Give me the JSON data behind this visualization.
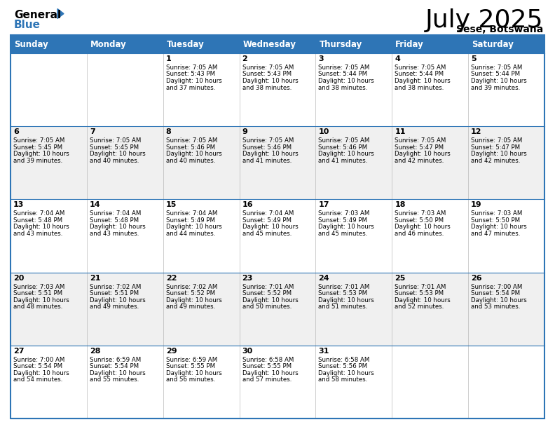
{
  "title": "July 2025",
  "subtitle": "Sese, Botswana",
  "header_bg": "#2E75B6",
  "header_text_color": "#FFFFFF",
  "border_color": "#2E75B6",
  "days_of_week": [
    "Sunday",
    "Monday",
    "Tuesday",
    "Wednesday",
    "Thursday",
    "Friday",
    "Saturday"
  ],
  "calendar": [
    [
      {
        "day": "",
        "sunrise": "",
        "sunset": "",
        "daylight": ""
      },
      {
        "day": "",
        "sunrise": "",
        "sunset": "",
        "daylight": ""
      },
      {
        "day": "1",
        "sunrise": "7:05 AM",
        "sunset": "5:43 PM",
        "daylight": "10 hours and 37 minutes."
      },
      {
        "day": "2",
        "sunrise": "7:05 AM",
        "sunset": "5:43 PM",
        "daylight": "10 hours and 38 minutes."
      },
      {
        "day": "3",
        "sunrise": "7:05 AM",
        "sunset": "5:44 PM",
        "daylight": "10 hours and 38 minutes."
      },
      {
        "day": "4",
        "sunrise": "7:05 AM",
        "sunset": "5:44 PM",
        "daylight": "10 hours and 38 minutes."
      },
      {
        "day": "5",
        "sunrise": "7:05 AM",
        "sunset": "5:44 PM",
        "daylight": "10 hours and 39 minutes."
      }
    ],
    [
      {
        "day": "6",
        "sunrise": "7:05 AM",
        "sunset": "5:45 PM",
        "daylight": "10 hours and 39 minutes."
      },
      {
        "day": "7",
        "sunrise": "7:05 AM",
        "sunset": "5:45 PM",
        "daylight": "10 hours and 40 minutes."
      },
      {
        "day": "8",
        "sunrise": "7:05 AM",
        "sunset": "5:46 PM",
        "daylight": "10 hours and 40 minutes."
      },
      {
        "day": "9",
        "sunrise": "7:05 AM",
        "sunset": "5:46 PM",
        "daylight": "10 hours and 41 minutes."
      },
      {
        "day": "10",
        "sunrise": "7:05 AM",
        "sunset": "5:46 PM",
        "daylight": "10 hours and 41 minutes."
      },
      {
        "day": "11",
        "sunrise": "7:05 AM",
        "sunset": "5:47 PM",
        "daylight": "10 hours and 42 minutes."
      },
      {
        "day": "12",
        "sunrise": "7:05 AM",
        "sunset": "5:47 PM",
        "daylight": "10 hours and 42 minutes."
      }
    ],
    [
      {
        "day": "13",
        "sunrise": "7:04 AM",
        "sunset": "5:48 PM",
        "daylight": "10 hours and 43 minutes."
      },
      {
        "day": "14",
        "sunrise": "7:04 AM",
        "sunset": "5:48 PM",
        "daylight": "10 hours and 43 minutes."
      },
      {
        "day": "15",
        "sunrise": "7:04 AM",
        "sunset": "5:49 PM",
        "daylight": "10 hours and 44 minutes."
      },
      {
        "day": "16",
        "sunrise": "7:04 AM",
        "sunset": "5:49 PM",
        "daylight": "10 hours and 45 minutes."
      },
      {
        "day": "17",
        "sunrise": "7:03 AM",
        "sunset": "5:49 PM",
        "daylight": "10 hours and 45 minutes."
      },
      {
        "day": "18",
        "sunrise": "7:03 AM",
        "sunset": "5:50 PM",
        "daylight": "10 hours and 46 minutes."
      },
      {
        "day": "19",
        "sunrise": "7:03 AM",
        "sunset": "5:50 PM",
        "daylight": "10 hours and 47 minutes."
      }
    ],
    [
      {
        "day": "20",
        "sunrise": "7:03 AM",
        "sunset": "5:51 PM",
        "daylight": "10 hours and 48 minutes."
      },
      {
        "day": "21",
        "sunrise": "7:02 AM",
        "sunset": "5:51 PM",
        "daylight": "10 hours and 49 minutes."
      },
      {
        "day": "22",
        "sunrise": "7:02 AM",
        "sunset": "5:52 PM",
        "daylight": "10 hours and 49 minutes."
      },
      {
        "day": "23",
        "sunrise": "7:01 AM",
        "sunset": "5:52 PM",
        "daylight": "10 hours and 50 minutes."
      },
      {
        "day": "24",
        "sunrise": "7:01 AM",
        "sunset": "5:53 PM",
        "daylight": "10 hours and 51 minutes."
      },
      {
        "day": "25",
        "sunrise": "7:01 AM",
        "sunset": "5:53 PM",
        "daylight": "10 hours and 52 minutes."
      },
      {
        "day": "26",
        "sunrise": "7:00 AM",
        "sunset": "5:54 PM",
        "daylight": "10 hours and 53 minutes."
      }
    ],
    [
      {
        "day": "27",
        "sunrise": "7:00 AM",
        "sunset": "5:54 PM",
        "daylight": "10 hours and 54 minutes."
      },
      {
        "day": "28",
        "sunrise": "6:59 AM",
        "sunset": "5:54 PM",
        "daylight": "10 hours and 55 minutes."
      },
      {
        "day": "29",
        "sunrise": "6:59 AM",
        "sunset": "5:55 PM",
        "daylight": "10 hours and 56 minutes."
      },
      {
        "day": "30",
        "sunrise": "6:58 AM",
        "sunset": "5:55 PM",
        "daylight": "10 hours and 57 minutes."
      },
      {
        "day": "31",
        "sunrise": "6:58 AM",
        "sunset": "5:56 PM",
        "daylight": "10 hours and 58 minutes."
      },
      {
        "day": "",
        "sunrise": "",
        "sunset": "",
        "daylight": ""
      },
      {
        "day": "",
        "sunrise": "",
        "sunset": "",
        "daylight": ""
      }
    ]
  ],
  "fig_width": 7.92,
  "fig_height": 6.12,
  "logo_color": "#2E75B6"
}
